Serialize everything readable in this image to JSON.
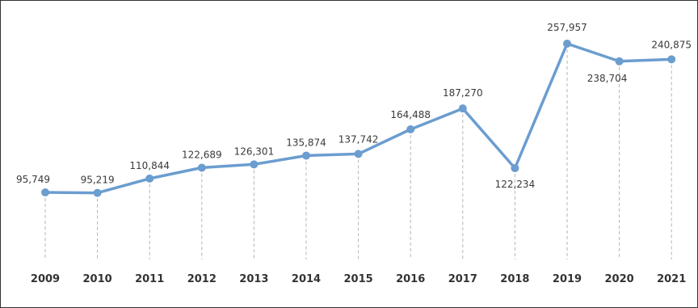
{
  "chart_data": {
    "type": "line",
    "title": "",
    "xlabel": "",
    "ylabel": "",
    "categories": [
      "2009",
      "2010",
      "2011",
      "2012",
      "2013",
      "2014",
      "2015",
      "2016",
      "2017",
      "2018",
      "2019",
      "2020",
      "2021"
    ],
    "series": [
      {
        "values": [
          95749,
          95219,
          110844,
          122689,
          126301,
          135874,
          137742,
          164488,
          187270,
          122234,
          257957,
          238704,
          240875
        ],
        "labels": [
          "95,749",
          "95,219",
          "110,844",
          "122,689",
          "126,301",
          "135,874",
          "137,742",
          "164,488",
          "187,270",
          "122,234",
          "257,957",
          "238,704",
          "240,875"
        ]
      }
    ],
    "ylim": [
      0,
      270000
    ],
    "grid": "vertical dashed drop lines",
    "legend": "none",
    "colors": {
      "line": "#6b9dcf",
      "marker": "#6b9dcf",
      "dropline": "#b5b5b5",
      "label": "#3a3a3a"
    }
  }
}
